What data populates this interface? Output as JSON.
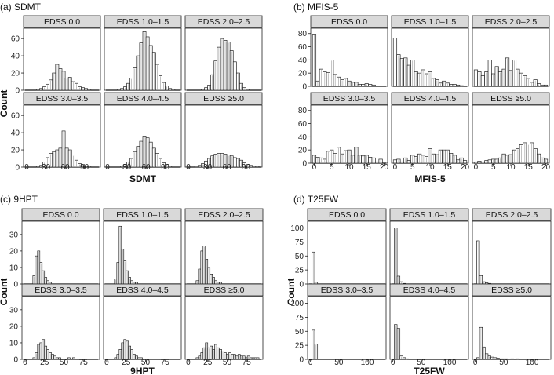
{
  "chart_data": [
    {
      "id": "a",
      "type": "histogram-facets",
      "title": "(a) SDMT",
      "xlabel": "SDMT",
      "ylabel": "Count",
      "xlim": [
        -5,
        115
      ],
      "xticks": [
        0,
        30,
        60,
        90
      ],
      "ylim": [
        0,
        72
      ],
      "yticks": [
        0,
        20,
        40,
        60
      ],
      "bin_start": 0,
      "bin_width": 5,
      "panels": [
        {
          "label": "EDSS 0.0",
          "counts": [
            0,
            0,
            0,
            1,
            2,
            4,
            7,
            12,
            20,
            30,
            25,
            22,
            14,
            15,
            10,
            8,
            4,
            3,
            2,
            1,
            0,
            0,
            0
          ]
        },
        {
          "label": "EDSS 1.0–1.5",
          "counts": [
            0,
            0,
            0,
            1,
            2,
            4,
            8,
            14,
            26,
            40,
            55,
            68,
            62,
            52,
            44,
            30,
            17,
            9,
            5,
            2,
            1,
            0,
            0
          ]
        },
        {
          "label": "EDSS 2.0–2.5",
          "counts": [
            0,
            0,
            0,
            0,
            1,
            3,
            6,
            18,
            34,
            50,
            60,
            58,
            56,
            46,
            33,
            20,
            8,
            3,
            1,
            0,
            0,
            0,
            0
          ]
        },
        {
          "label": "EDSS 3.0–3.5",
          "counts": [
            0,
            0,
            0,
            1,
            2,
            6,
            11,
            16,
            18,
            20,
            22,
            42,
            22,
            20,
            14,
            8,
            4,
            3,
            1,
            1,
            0,
            0,
            0
          ]
        },
        {
          "label": "EDSS 4.0–4.5",
          "counts": [
            0,
            0,
            0,
            0,
            1,
            3,
            6,
            10,
            18,
            24,
            30,
            36,
            34,
            29,
            22,
            16,
            10,
            5,
            3,
            1,
            0,
            0,
            0
          ]
        },
        {
          "label": "EDSS ≥5.0",
          "counts": [
            0,
            0,
            1,
            2,
            4,
            7,
            10,
            13,
            15,
            16,
            16,
            15,
            14,
            13,
            11,
            10,
            8,
            5,
            3,
            2,
            1,
            1,
            0
          ]
        }
      ]
    },
    {
      "id": "b",
      "type": "histogram-facets",
      "title": "(b) MFIS-5",
      "xlabel": "MFIS-5",
      "ylabel": "",
      "xlim": [
        -1,
        21
      ],
      "xticks": [
        0,
        5,
        10,
        15,
        20
      ],
      "ylim": [
        0,
        88
      ],
      "yticks": [
        0,
        20,
        40,
        60,
        80
      ],
      "bin_start": -0.5,
      "bin_width": 1,
      "panels": [
        {
          "label": "EDSS 0.0",
          "counts": [
            79,
            8,
            26,
            22,
            21,
            40,
            18,
            14,
            10,
            12,
            8,
            6,
            6,
            3,
            3,
            4,
            3,
            2,
            0,
            0,
            0
          ]
        },
        {
          "label": "EDSS 1.0–1.5",
          "counts": [
            73,
            48,
            42,
            43,
            32,
            40,
            22,
            20,
            25,
            19,
            22,
            12,
            10,
            5,
            8,
            5,
            3,
            3,
            2,
            1,
            0
          ]
        },
        {
          "label": "EDSS 2.0–2.5",
          "counts": [
            25,
            22,
            16,
            22,
            40,
            19,
            30,
            22,
            26,
            43,
            24,
            40,
            26,
            20,
            16,
            12,
            6,
            10,
            4,
            2,
            2
          ]
        },
        {
          "label": "EDSS 3.0–3.5",
          "counts": [
            12,
            9,
            8,
            6,
            18,
            20,
            15,
            24,
            14,
            19,
            20,
            12,
            24,
            12,
            11,
            12,
            9,
            8,
            2,
            6,
            0
          ]
        },
        {
          "label": "EDSS 4.0–4.5",
          "counts": [
            5,
            6,
            2,
            8,
            4,
            12,
            10,
            14,
            12,
            10,
            22,
            14,
            13,
            20,
            20,
            20,
            15,
            12,
            5,
            8,
            4
          ]
        },
        {
          "label": "EDSS ≥5.0",
          "counts": [
            2,
            3,
            2,
            4,
            5,
            6,
            6,
            8,
            14,
            12,
            13,
            20,
            22,
            28,
            31,
            29,
            31,
            22,
            14,
            8,
            6
          ]
        }
      ]
    },
    {
      "id": "c",
      "type": "histogram-facets",
      "title": "(c) 9HPT",
      "xlabel": "9HPT",
      "ylabel": "Count",
      "xlim": [
        -4,
        96
      ],
      "xticks": [
        0,
        25,
        50,
        75
      ],
      "ylim": [
        0,
        38
      ],
      "yticks": [
        0,
        10,
        20,
        30
      ],
      "bin_start": 10,
      "bin_width": 3,
      "panels": [
        {
          "label": "EDSS 0.0",
          "counts": [
            5,
            17,
            20,
            13,
            8,
            4,
            2,
            1,
            0,
            0,
            0,
            0,
            0,
            0,
            0,
            0,
            0,
            0,
            0,
            0,
            0,
            0,
            0,
            0,
            0,
            0,
            0
          ]
        },
        {
          "label": "EDSS 1.0–1.5",
          "counts": [
            3,
            13,
            35,
            21,
            14,
            8,
            4,
            2,
            1,
            1,
            0,
            0,
            0,
            0,
            0,
            0,
            0,
            0,
            0,
            0,
            0,
            0,
            0,
            0,
            0,
            0,
            0
          ]
        },
        {
          "label": "EDSS 2.0–2.5",
          "counts": [
            2,
            9,
            20,
            23,
            15,
            10,
            6,
            4,
            2,
            1,
            1,
            0,
            0,
            0,
            0,
            0,
            0,
            0,
            0,
            0,
            0,
            0,
            0,
            0,
            0,
            0,
            0
          ]
        },
        {
          "label": "EDSS 3.0–3.5",
          "counts": [
            1,
            4,
            9,
            10,
            12,
            8,
            6,
            4,
            3,
            2,
            1,
            1,
            0,
            0,
            0,
            1,
            0,
            1,
            0,
            0,
            0,
            0,
            0,
            0,
            0,
            0,
            0
          ]
        },
        {
          "label": "EDSS 4.0–4.5",
          "counts": [
            1,
            3,
            6,
            10,
            12,
            11,
            8,
            6,
            3,
            2,
            1,
            1,
            0,
            0,
            0,
            0,
            0,
            0,
            0,
            0,
            0,
            0,
            0,
            0,
            0,
            0,
            0
          ]
        },
        {
          "label": "EDSS ≥5.0",
          "counts": [
            1,
            2,
            4,
            7,
            10,
            7,
            8,
            6,
            9,
            7,
            6,
            5,
            4,
            3,
            4,
            3,
            3,
            2,
            3,
            2,
            2,
            1,
            2,
            1,
            1,
            1,
            1
          ]
        }
      ]
    },
    {
      "id": "d",
      "type": "histogram-facets",
      "title": "(d) T25FW",
      "xlabel": "T25FW",
      "ylabel": "Count",
      "xlim": [
        -5,
        133
      ],
      "xticks": [
        0,
        50,
        100
      ],
      "ylim": [
        0,
        112
      ],
      "yticks": [
        0,
        25,
        50,
        75,
        100
      ],
      "bin_start": 2.5,
      "bin_width": 5,
      "panels": [
        {
          "label": "EDSS 0.0",
          "counts": [
            57,
            3,
            0,
            0,
            0,
            0,
            0,
            0,
            0,
            0,
            0,
            0,
            0,
            0,
            0,
            0,
            0,
            0,
            0,
            0,
            0,
            0,
            0,
            0,
            0
          ]
        },
        {
          "label": "EDSS 1.0–1.5",
          "counts": [
            100,
            14,
            4,
            1,
            0,
            0,
            0,
            0,
            0,
            0,
            0,
            0,
            0,
            0,
            0,
            0,
            0,
            0,
            0,
            0,
            0,
            0,
            0,
            0,
            0
          ]
        },
        {
          "label": "EDSS 2.0–2.5",
          "counts": [
            77,
            15,
            4,
            2,
            1,
            0,
            0,
            0,
            0,
            0,
            0,
            0,
            0,
            0,
            0,
            0,
            0,
            0,
            0,
            0,
            0,
            0,
            0,
            0,
            0
          ]
        },
        {
          "label": "EDSS 3.0–3.5",
          "counts": [
            52,
            27,
            0,
            0,
            0,
            0,
            0,
            0,
            0,
            0,
            0,
            0,
            0,
            0,
            0,
            0,
            0,
            0,
            0,
            0,
            0,
            0,
            0,
            0,
            0
          ]
        },
        {
          "label": "EDSS 4.0–4.5",
          "counts": [
            62,
            55,
            6,
            3,
            1,
            0,
            0,
            0,
            0,
            0,
            0,
            0,
            0,
            0,
            0,
            0,
            0,
            0,
            0,
            0,
            0,
            0,
            0,
            0,
            0
          ]
        },
        {
          "label": "EDSS ≥5.0",
          "counts": [
            3,
            57,
            22,
            10,
            6,
            4,
            3,
            2,
            1,
            1,
            1,
            0,
            1,
            0,
            1,
            0,
            0,
            0,
            0,
            0,
            0,
            0,
            0,
            0,
            0
          ]
        }
      ]
    }
  ],
  "colors": {
    "bar_light": "#ffffff",
    "bar_dark": "#7f7f7f",
    "strip": "#d9d9d9",
    "border": "#222222"
  }
}
